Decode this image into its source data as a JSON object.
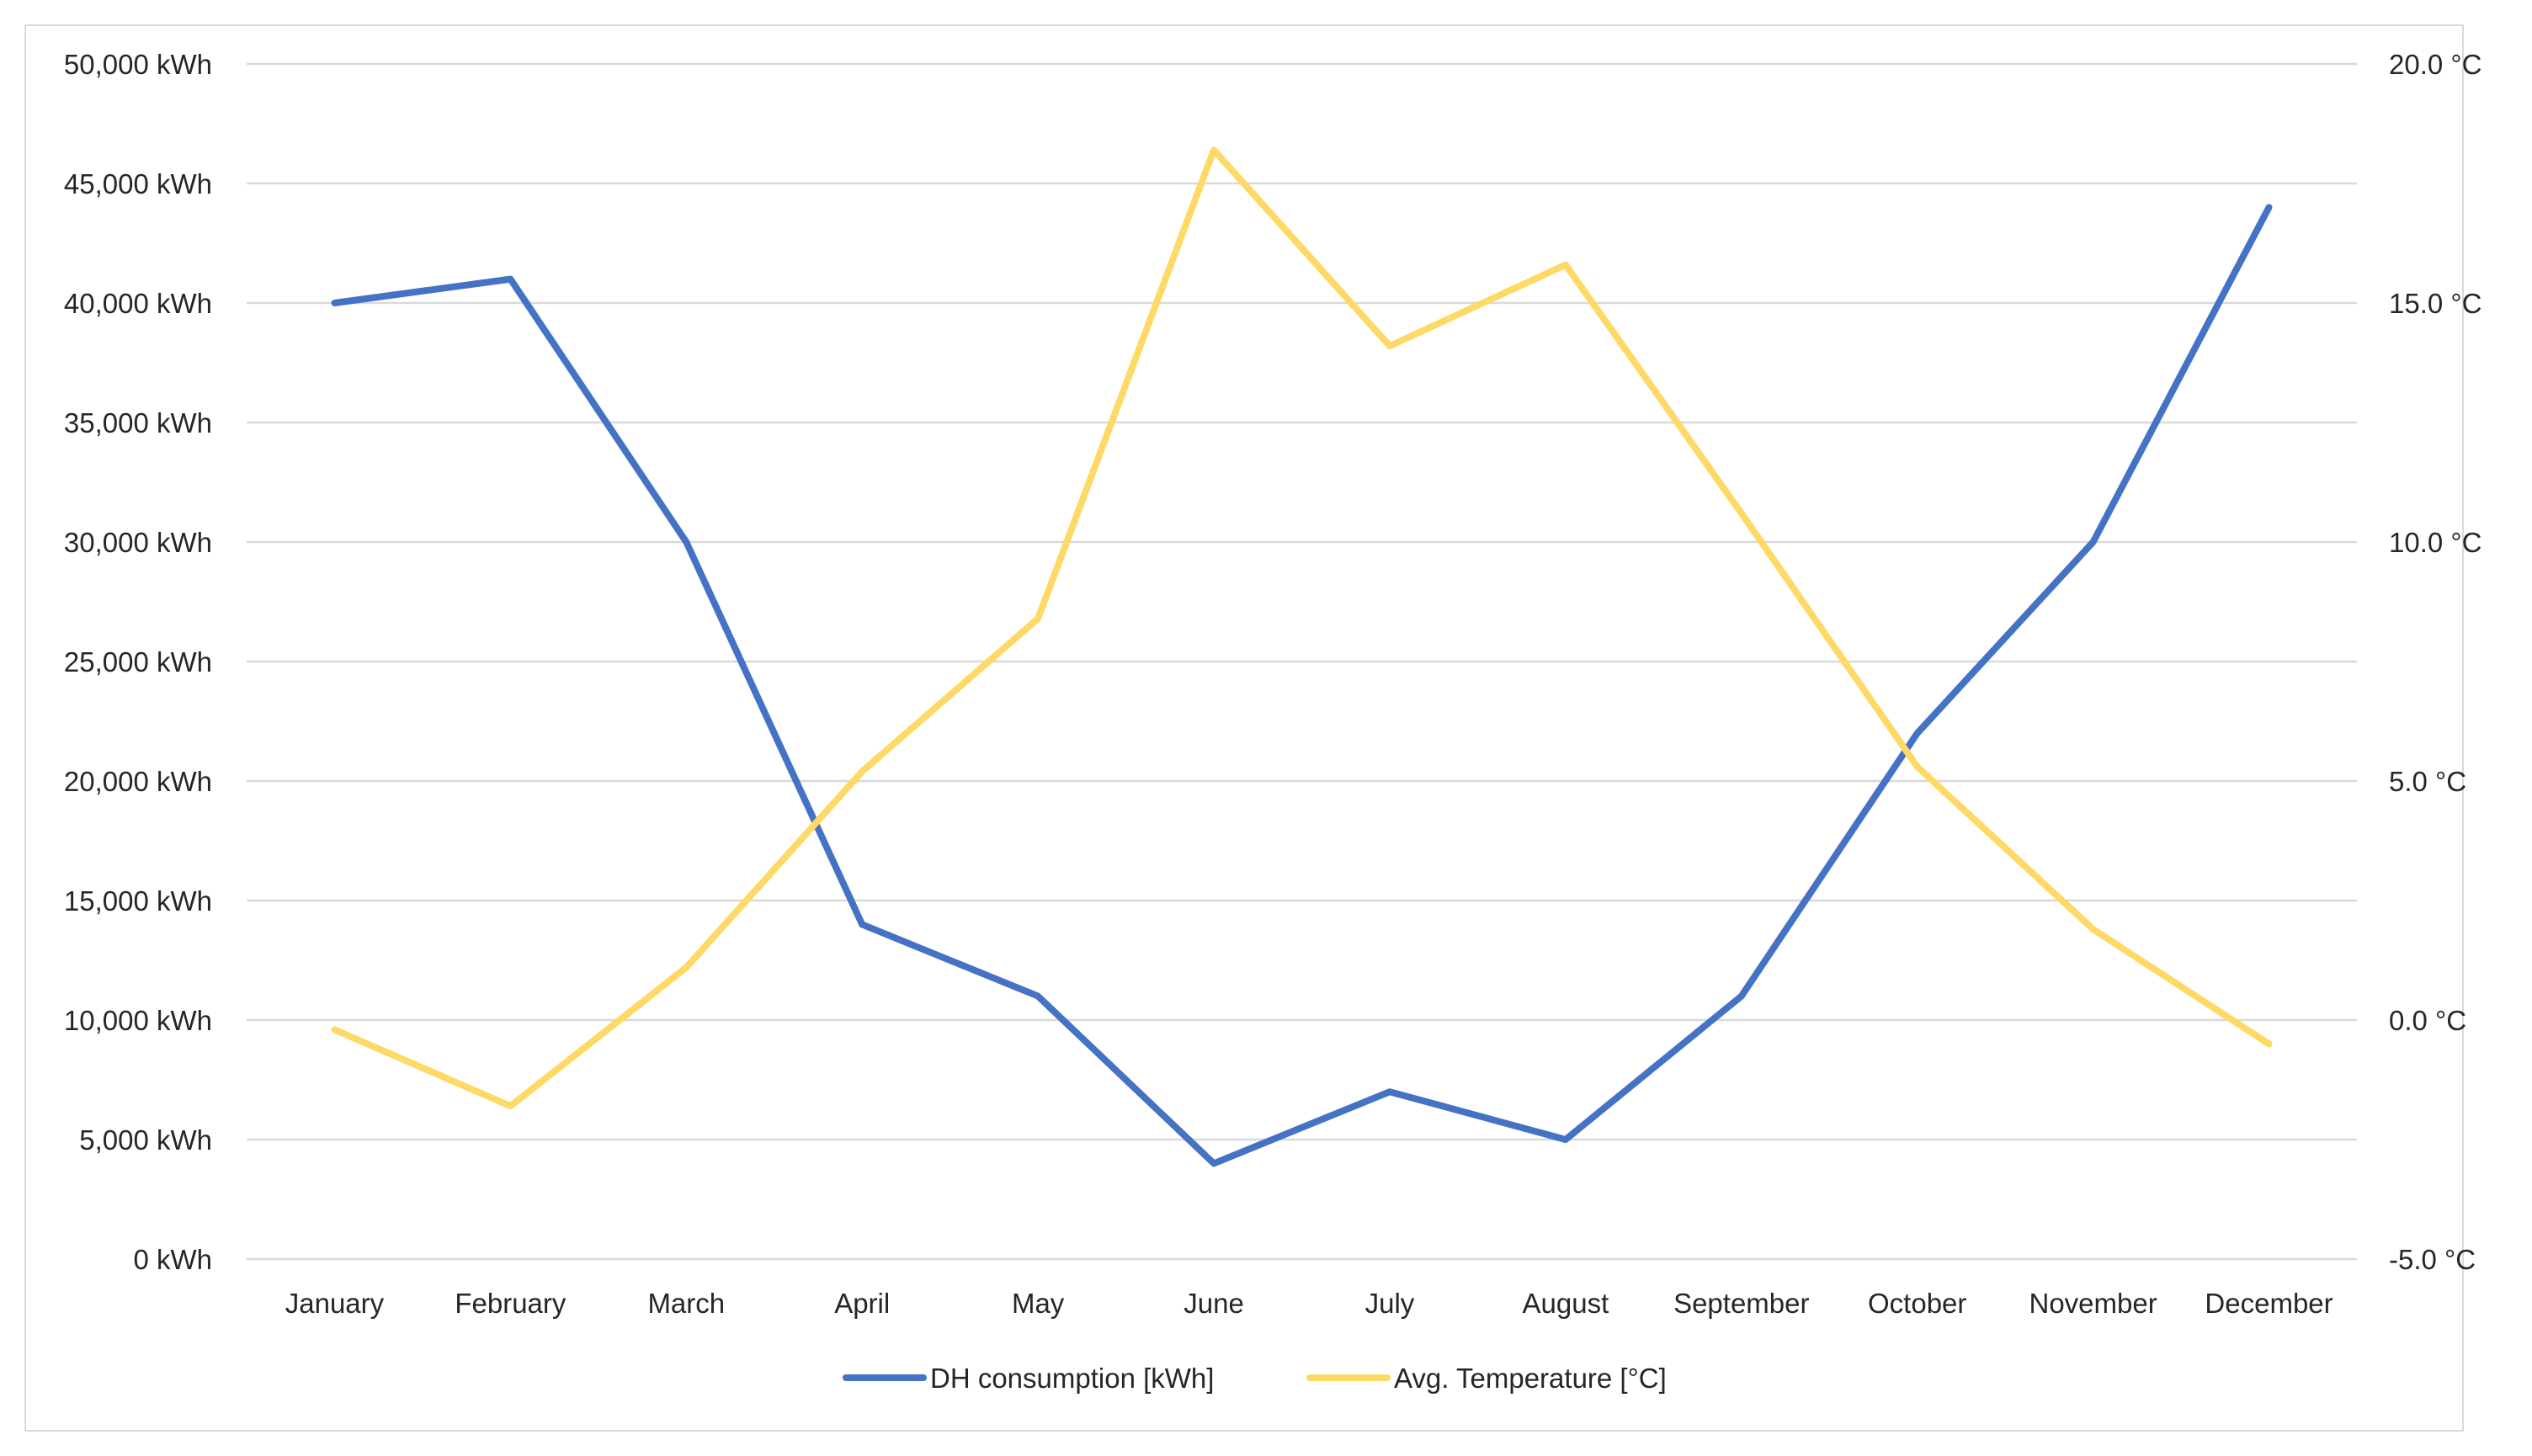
{
  "chart_data": {
    "type": "line",
    "title": "",
    "xlabel": "",
    "ylabel": "",
    "categories": [
      "January",
      "February",
      "March",
      "April",
      "May",
      "June",
      "July",
      "August",
      "September",
      "October",
      "November",
      "December"
    ],
    "series": [
      {
        "name": "DH consumption [kWh]",
        "axis": "left",
        "color": "#4472c4",
        "values": [
          40000,
          41000,
          30000,
          14000,
          11000,
          4000,
          7000,
          5000,
          11000,
          22000,
          30000,
          44000
        ]
      },
      {
        "name": "Avg. Temperature [°C]",
        "axis": "right",
        "color": "#ffd966",
        "values": [
          -0.2,
          -1.8,
          1.1,
          5.2,
          8.4,
          18.2,
          14.1,
          15.8,
          10.6,
          5.3,
          1.9,
          -0.5
        ]
      }
    ],
    "y_left": {
      "ylim": [
        0,
        50000
      ],
      "tick_labels": [
        "0 kWh",
        "5,000 kWh",
        "10,000 kWh",
        "15,000 kWh",
        "20,000 kWh",
        "25,000 kWh",
        "30,000 kWh",
        "35,000 kWh",
        "40,000 kWh",
        "45,000 kWh",
        "50,000 kWh"
      ]
    },
    "y_right": {
      "ylim": [
        -5,
        20
      ],
      "tick_labels": [
        "-5.0 °C",
        "0.0 °C",
        "5.0 °C",
        "10.0 °C",
        "15.0 °C",
        "20.0 °C"
      ]
    },
    "grid": true,
    "legend_position": "bottom"
  }
}
